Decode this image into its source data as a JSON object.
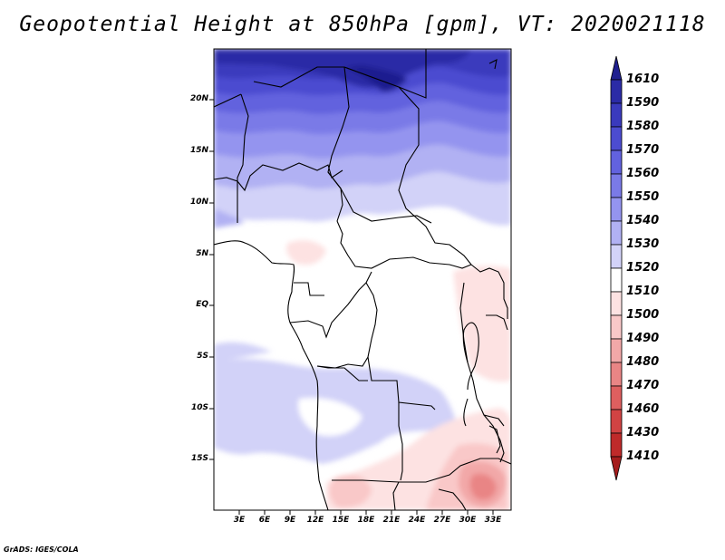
{
  "title": "Geopotential Height at 850hPa [gpm], VT: 2020021118",
  "credit": "GrADS: IGES/COLA",
  "map": {
    "lat_labels": [
      "20N",
      "15N",
      "10N",
      "5N",
      "EQ",
      "5S",
      "10S",
      "15S"
    ],
    "lon_labels": [
      "3E",
      "6E",
      "9E",
      "12E",
      "15E",
      "18E",
      "21E",
      "24E",
      "27E",
      "30E",
      "33E"
    ]
  },
  "colorbar": {
    "levels": [
      "1610",
      "1590",
      "1580",
      "1570",
      "1560",
      "1550",
      "1540",
      "1530",
      "1520",
      "1510",
      "1500",
      "1490",
      "1480",
      "1470",
      "1460",
      "1430",
      "1410"
    ],
    "colors": [
      "#1f1f8f",
      "#2b2ba6",
      "#3a3abd",
      "#4c4cd0",
      "#6262de",
      "#7a7ae7",
      "#9494ef",
      "#b1b1f3",
      "#d2d2f8",
      "#ffffff",
      "#fde2e2",
      "#f9c8c8",
      "#f2a8a8",
      "#e98585",
      "#de5f5f",
      "#d14343",
      "#bf2a2a",
      "#a51d1d"
    ]
  }
}
